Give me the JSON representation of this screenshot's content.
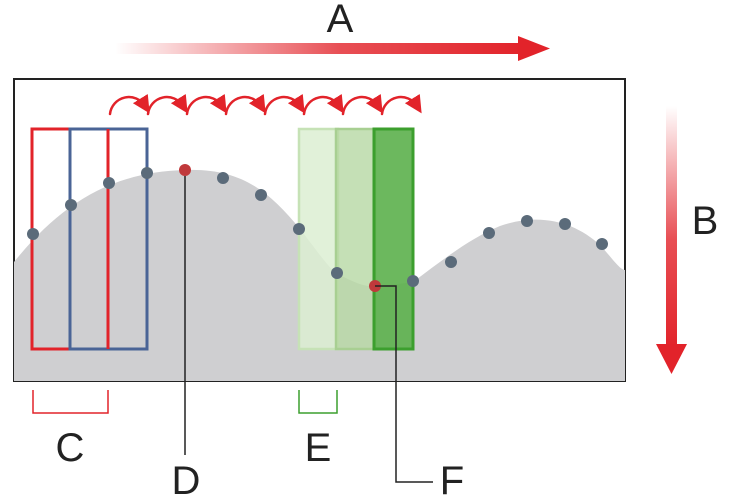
{
  "labels": {
    "a": "A",
    "b": "B",
    "c": "C",
    "d": "D",
    "e": "E",
    "f": "F"
  },
  "colors": {
    "red": "#e2232a",
    "blue": "#4a6496",
    "green_dark": "#5cb04c",
    "green_mid": "#b7d8a4",
    "green_light": "#dcefd2",
    "terrain": "#cfcfd1",
    "dot": "#5b6b7a",
    "dot_highlight": "#c0393b",
    "frame": "#222222"
  }
}
